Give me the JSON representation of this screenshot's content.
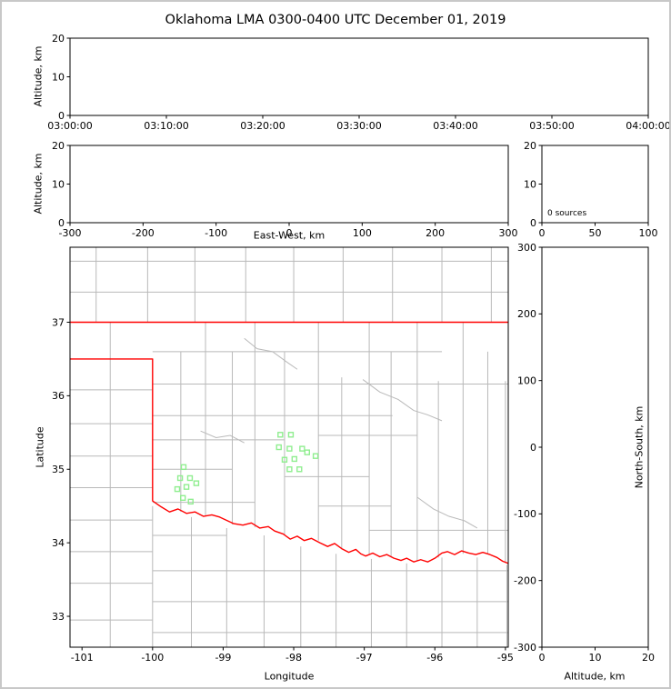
{
  "figure": {
    "title": "Oklahoma LMA 0300-0400 UTC December 01, 2019",
    "background": "#ffffff",
    "border_color": "#c8c8c8"
  },
  "colors": {
    "axis": "#000000",
    "county": "#b9b9b9",
    "state": "#ff0000",
    "station": "#90EE90"
  },
  "chart_data": [
    {
      "id": "time_height",
      "type": "scatter",
      "xlabel": "",
      "ylabel": "Altitude, km",
      "xlim": [
        0,
        6
      ],
      "ylim": [
        0,
        20
      ],
      "xticks": [
        {
          "v": 0,
          "l": "03:00:00"
        },
        {
          "v": 1,
          "l": "03:10:00"
        },
        {
          "v": 2,
          "l": "03:20:00"
        },
        {
          "v": 3,
          "l": "03:30:00"
        },
        {
          "v": 4,
          "l": "03:40:00"
        },
        {
          "v": 5,
          "l": "03:50:00"
        },
        {
          "v": 6,
          "l": "04:00:00"
        }
      ],
      "yticks": [
        {
          "v": 0,
          "l": "0"
        },
        {
          "v": 10,
          "l": "10"
        },
        {
          "v": 20,
          "l": "20"
        }
      ],
      "points": []
    },
    {
      "id": "ew_height",
      "type": "scatter",
      "xlabel": "East-West, km",
      "ylabel": "Altitude, km",
      "xlim": [
        -300,
        300
      ],
      "ylim": [
        0,
        20
      ],
      "xticks": [
        {
          "v": -300,
          "l": "-300"
        },
        {
          "v": -200,
          "l": "-200"
        },
        {
          "v": -100,
          "l": "-100"
        },
        {
          "v": 0,
          "l": "0"
        },
        {
          "v": 100,
          "l": "100"
        },
        {
          "v": 200,
          "l": "200"
        },
        {
          "v": 300,
          "l": "300"
        }
      ],
      "yticks": [
        {
          "v": 0,
          "l": "0"
        },
        {
          "v": 10,
          "l": "10"
        },
        {
          "v": 20,
          "l": "20"
        }
      ],
      "points": []
    },
    {
      "id": "histogram",
      "type": "line",
      "xlabel": "",
      "ylabel": "",
      "xlim": [
        0,
        100
      ],
      "ylim": [
        0,
        20
      ],
      "xticks": [
        {
          "v": 0,
          "l": "0"
        },
        {
          "v": 50,
          "l": "50"
        },
        {
          "v": 100,
          "l": "100"
        }
      ],
      "yticks": [
        {
          "v": 0,
          "l": "0"
        },
        {
          "v": 10,
          "l": "10"
        },
        {
          "v": 20,
          "l": "20"
        }
      ],
      "annotation": "0 sources",
      "points": []
    },
    {
      "id": "plan_view",
      "type": "scatter",
      "xlabel": "Longitude",
      "ylabel": "Latitude",
      "xlim": [
        -101.17,
        -94.96
      ],
      "ylim": [
        32.58,
        38.02
      ],
      "xticks": [
        {
          "v": -101,
          "l": "-101"
        },
        {
          "v": -100,
          "l": "-100"
        },
        {
          "v": -99,
          "l": "-99"
        },
        {
          "v": -98,
          "l": "-98"
        },
        {
          "v": -97,
          "l": "-97"
        },
        {
          "v": -96,
          "l": "-96"
        },
        {
          "v": -95,
          "l": "-95"
        }
      ],
      "yticks": [
        {
          "v": 33,
          "l": "33"
        },
        {
          "v": 34,
          "l": "34"
        },
        {
          "v": 35,
          "l": "35"
        },
        {
          "v": 36,
          "l": "36"
        },
        {
          "v": 37,
          "l": "37"
        }
      ],
      "stations": [
        [
          -98.19,
          35.47
        ],
        [
          -98.04,
          35.47
        ],
        [
          -98.21,
          35.3
        ],
        [
          -98.06,
          35.28
        ],
        [
          -97.88,
          35.28
        ],
        [
          -98.13,
          35.13
        ],
        [
          -97.99,
          35.14
        ],
        [
          -97.81,
          35.23
        ],
        [
          -97.69,
          35.18
        ],
        [
          -98.06,
          35.0
        ],
        [
          -97.92,
          35.0
        ],
        [
          -99.56,
          35.03
        ],
        [
          -99.61,
          34.88
        ],
        [
          -99.47,
          34.88
        ],
        [
          -99.65,
          34.73
        ],
        [
          -99.52,
          34.76
        ],
        [
          -99.38,
          34.81
        ],
        [
          -99.57,
          34.61
        ],
        [
          -99.46,
          34.56
        ]
      ],
      "state_border": [
        [
          [
            -101.17,
            37.0
          ],
          [
            -94.96,
            37.0
          ]
        ],
        [
          [
            -101.17,
            36.5
          ],
          [
            -100.0,
            36.5
          ],
          [
            -100.0,
            34.57
          ],
          [
            -99.88,
            34.49
          ],
          [
            -99.76,
            34.42
          ],
          [
            -99.64,
            34.46
          ],
          [
            -99.52,
            34.4
          ],
          [
            -99.4,
            34.42
          ],
          [
            -99.28,
            34.36
          ],
          [
            -99.16,
            34.38
          ],
          [
            -99.05,
            34.35
          ],
          [
            -98.85,
            34.26
          ],
          [
            -98.72,
            34.24
          ],
          [
            -98.6,
            34.27
          ],
          [
            -98.48,
            34.2
          ],
          [
            -98.36,
            34.22
          ],
          [
            -98.27,
            34.16
          ],
          [
            -98.15,
            34.12
          ],
          [
            -98.05,
            34.05
          ],
          [
            -97.95,
            34.09
          ],
          [
            -97.85,
            34.03
          ],
          [
            -97.75,
            34.06
          ],
          [
            -97.63,
            34.0
          ],
          [
            -97.52,
            33.95
          ],
          [
            -97.42,
            33.99
          ],
          [
            -97.32,
            33.92
          ],
          [
            -97.22,
            33.87
          ],
          [
            -97.12,
            33.91
          ],
          [
            -97.05,
            33.85
          ],
          [
            -96.98,
            33.82
          ],
          [
            -96.88,
            33.86
          ],
          [
            -96.78,
            33.81
          ],
          [
            -96.68,
            33.84
          ],
          [
            -96.58,
            33.79
          ],
          [
            -96.48,
            33.76
          ],
          [
            -96.4,
            33.79
          ],
          [
            -96.3,
            33.74
          ],
          [
            -96.2,
            33.77
          ],
          [
            -96.1,
            33.74
          ],
          [
            -96.0,
            33.79
          ],
          [
            -95.9,
            33.86
          ],
          [
            -95.82,
            33.88
          ],
          [
            -95.72,
            33.84
          ],
          [
            -95.62,
            33.89
          ],
          [
            -95.52,
            33.86
          ],
          [
            -95.42,
            33.84
          ],
          [
            -95.32,
            33.87
          ],
          [
            -95.22,
            33.84
          ],
          [
            -95.12,
            33.8
          ],
          [
            -95.04,
            33.75
          ],
          [
            -94.96,
            33.72
          ]
        ]
      ],
      "county_lines": {
        "vertical": [
          [
            -100.8,
            37.0,
            38.02
          ],
          [
            -100.07,
            37.0,
            38.02
          ],
          [
            -99.4,
            37.0,
            38.02
          ],
          [
            -98.68,
            37.0,
            38.02
          ],
          [
            -98.0,
            37.0,
            38.02
          ],
          [
            -97.3,
            37.0,
            38.02
          ],
          [
            -96.6,
            37.0,
            38.02
          ],
          [
            -95.9,
            37.0,
            38.02
          ],
          [
            -95.2,
            37.0,
            38.02
          ],
          [
            -100.6,
            36.5,
            37.0
          ],
          [
            -100.6,
            32.58,
            36.5
          ],
          [
            -99.6,
            34.42,
            36.6
          ],
          [
            -99.25,
            34.37,
            37.0
          ],
          [
            -98.87,
            34.25,
            36.6
          ],
          [
            -98.55,
            34.21,
            37.0
          ],
          [
            -98.13,
            34.1,
            36.6
          ],
          [
            -97.65,
            34.03,
            37.0
          ],
          [
            -97.32,
            33.91,
            36.25
          ],
          [
            -96.93,
            33.85,
            37.0
          ],
          [
            -96.62,
            33.8,
            36.6
          ],
          [
            -96.25,
            33.75,
            37.0
          ],
          [
            -95.95,
            33.8,
            36.2
          ],
          [
            -95.6,
            33.85,
            37.0
          ],
          [
            -95.25,
            33.85,
            36.6
          ],
          [
            -95.0,
            33.73,
            36.2
          ],
          [
            -100.0,
            32.58,
            34.5
          ],
          [
            -99.45,
            32.58,
            34.35
          ],
          [
            -98.95,
            32.58,
            34.2
          ],
          [
            -98.42,
            32.58,
            34.1
          ],
          [
            -97.9,
            32.58,
            33.95
          ],
          [
            -97.4,
            32.58,
            33.85
          ],
          [
            -96.9,
            32.58,
            33.78
          ],
          [
            -96.4,
            32.58,
            33.72
          ],
          [
            -95.9,
            32.58,
            33.8
          ],
          [
            -95.4,
            32.58,
            33.8
          ],
          [
            -94.98,
            32.58,
            33.7
          ]
        ],
        "horizontal": [
          [
            37.41,
            -101.17,
            -94.96
          ],
          [
            37.83,
            -101.17,
            -94.96
          ],
          [
            36.08,
            -101.17,
            -100.0
          ],
          [
            35.62,
            -101.17,
            -100.0
          ],
          [
            35.18,
            -101.17,
            -100.0
          ],
          [
            34.75,
            -101.17,
            -100.0
          ],
          [
            34.31,
            -101.17,
            -100.0
          ],
          [
            33.88,
            -101.17,
            -100.0
          ],
          [
            33.45,
            -101.17,
            -100.0
          ],
          [
            32.95,
            -101.17,
            -100.0
          ],
          [
            36.6,
            -100.0,
            -95.9
          ],
          [
            36.16,
            -100.0,
            -94.96
          ],
          [
            35.73,
            -100.0,
            -96.6
          ],
          [
            35.4,
            -100.0,
            -98.13
          ],
          [
            35.46,
            -97.65,
            -96.25
          ],
          [
            35.0,
            -100.0,
            -98.87
          ],
          [
            34.9,
            -98.13,
            -96.93
          ],
          [
            34.55,
            -100.0,
            -98.55
          ],
          [
            34.5,
            -97.65,
            -96.62
          ],
          [
            34.17,
            -96.93,
            -94.96
          ],
          [
            34.1,
            -100.0,
            -98.95
          ],
          [
            33.62,
            -100.0,
            -94.96
          ],
          [
            33.2,
            -100.0,
            -94.96
          ],
          [
            32.78,
            -100.0,
            -94.96
          ]
        ],
        "curves": [
          [
            [
              -98.7,
              36.78
            ],
            [
              -98.52,
              36.64
            ],
            [
              -98.3,
              36.6
            ],
            [
              -98.1,
              36.46
            ],
            [
              -97.95,
              36.36
            ]
          ],
          [
            [
              -97.02,
              36.22
            ],
            [
              -96.78,
              36.05
            ],
            [
              -96.52,
              35.95
            ],
            [
              -96.3,
              35.8
            ],
            [
              -96.1,
              35.74
            ],
            [
              -95.9,
              35.66
            ]
          ],
          [
            [
              -96.25,
              34.62
            ],
            [
              -96.02,
              34.46
            ],
            [
              -95.8,
              34.36
            ],
            [
              -95.58,
              34.3
            ],
            [
              -95.4,
              34.2
            ]
          ],
          [
            [
              -99.32,
              35.52
            ],
            [
              -99.1,
              35.43
            ],
            [
              -98.9,
              35.46
            ],
            [
              -98.7,
              35.36
            ]
          ]
        ]
      }
    },
    {
      "id": "ns_height",
      "type": "scatter",
      "xlabel": "Altitude, km",
      "ylabel": "North-South, km",
      "xlim": [
        0,
        20
      ],
      "ylim": [
        -300,
        300
      ],
      "xticks": [
        {
          "v": 0,
          "l": "0"
        },
        {
          "v": 10,
          "l": "10"
        },
        {
          "v": 20,
          "l": "20"
        }
      ],
      "yticks": [
        {
          "v": 300,
          "l": "300"
        },
        {
          "v": 200,
          "l": "200"
        },
        {
          "v": 100,
          "l": "100"
        },
        {
          "v": 0,
          "l": "0"
        },
        {
          "v": -100,
          "l": "-100"
        },
        {
          "v": -200,
          "l": "-200"
        },
        {
          "v": -300,
          "l": "-300"
        }
      ],
      "points": []
    }
  ]
}
